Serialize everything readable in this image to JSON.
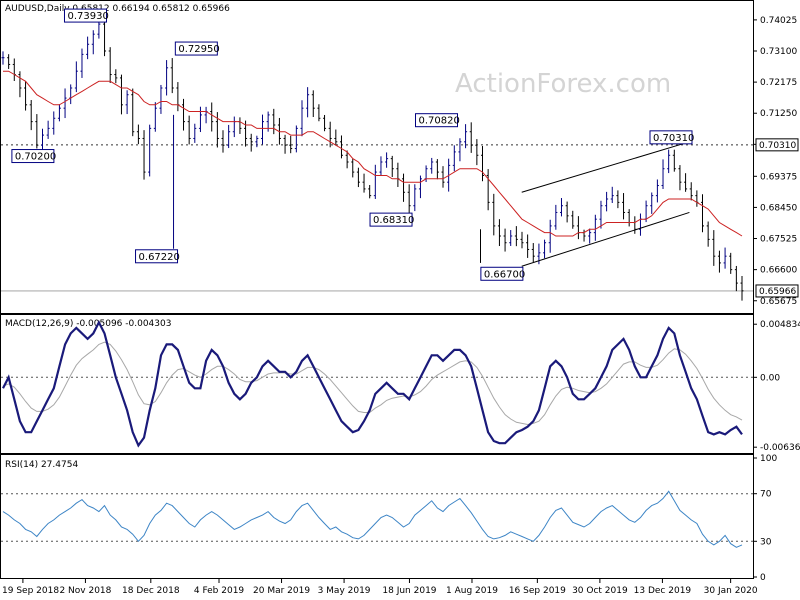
{
  "watermark": "ActionForex.com",
  "chart_data": [
    {
      "type": "ohlc",
      "title": "AUDUSD,Daily  0.65812 0.66194 0.65812 0.65966",
      "ylim": [
        0.654,
        0.742
      ],
      "yticks": [
        "0.74025",
        "0.73100",
        "0.72175",
        "0.71250",
        "0.70325",
        "0.69375",
        "0.68450",
        "0.67525",
        "0.66600",
        "0.65675"
      ],
      "ytick_values": [
        0.74025,
        0.731,
        0.72175,
        0.7125,
        0.70325,
        0.69375,
        0.6845,
        0.67525,
        0.666,
        0.65675
      ],
      "current_price_label": "0.65966",
      "current_price": 0.65966,
      "hline_label": "0.70310",
      "hline_value": 0.7031,
      "annotations": [
        {
          "text": "0.73930",
          "x": "2018-11-14",
          "value": 0.7393
        },
        {
          "text": "0.72950",
          "x": "2019-01-31",
          "value": 0.7295
        },
        {
          "text": "0.70200",
          "x": "2018-10-08",
          "value": 0.702
        },
        {
          "text": "0.67220",
          "x": "2019-01-03",
          "value": 0.6722
        },
        {
          "text": "0.70820",
          "x": "2019-07-19",
          "value": 0.7082
        },
        {
          "text": "0.68310",
          "x": "2019-06-17",
          "value": 0.6831
        },
        {
          "text": "0.66700",
          "x": "2019-09-03",
          "value": 0.667
        },
        {
          "text": "0.70310",
          "x": "2019-12-31",
          "value": 0.7031
        }
      ],
      "channel": {
        "upper": [
          [
            "2019-09-05",
            0.689
          ],
          [
            "2020-01-01",
            0.704
          ]
        ],
        "lower": [
          [
            "2019-09-05",
            0.667
          ],
          [
            "2020-01-01",
            0.683
          ]
        ]
      },
      "close": [
        0.729,
        0.727,
        0.724,
        0.72,
        0.715,
        0.71,
        0.703,
        0.706,
        0.708,
        0.711,
        0.714,
        0.717,
        0.72,
        0.725,
        0.73,
        0.733,
        0.736,
        0.739,
        0.731,
        0.724,
        0.723,
        0.715,
        0.718,
        0.707,
        0.705,
        0.695,
        0.708,
        0.714,
        0.72,
        0.726,
        0.72,
        0.715,
        0.71,
        0.705,
        0.708,
        0.712,
        0.713,
        0.71,
        0.705,
        0.703,
        0.707,
        0.71,
        0.708,
        0.705,
        0.704,
        0.705,
        0.71,
        0.712,
        0.709,
        0.705,
        0.703,
        0.702,
        0.708,
        0.714,
        0.718,
        0.714,
        0.711,
        0.708,
        0.705,
        0.704,
        0.7,
        0.698,
        0.695,
        0.692,
        0.69,
        0.688,
        0.695,
        0.698,
        0.699,
        0.696,
        0.693,
        0.689,
        0.685,
        0.69,
        0.693,
        0.696,
        0.698,
        0.695,
        0.692,
        0.697,
        0.701,
        0.704,
        0.707,
        0.703,
        0.7,
        0.694,
        0.686,
        0.679,
        0.676,
        0.674,
        0.676,
        0.675,
        0.674,
        0.672,
        0.67,
        0.671,
        0.674,
        0.679,
        0.683,
        0.685,
        0.682,
        0.679,
        0.677,
        0.676,
        0.677,
        0.681,
        0.685,
        0.687,
        0.688,
        0.686,
        0.683,
        0.68,
        0.678,
        0.681,
        0.685,
        0.688,
        0.691,
        0.696,
        0.7,
        0.696,
        0.692,
        0.69,
        0.688,
        0.686,
        0.679,
        0.675,
        0.67,
        0.668,
        0.67,
        0.666,
        0.662,
        0.6597
      ],
      "ma": [
        0.725,
        0.725,
        0.724,
        0.723,
        0.722,
        0.72,
        0.718,
        0.717,
        0.716,
        0.715,
        0.715,
        0.716,
        0.717,
        0.718,
        0.719,
        0.72,
        0.721,
        0.722,
        0.722,
        0.722,
        0.721,
        0.72,
        0.72,
        0.719,
        0.718,
        0.716,
        0.715,
        0.715,
        0.716,
        0.716,
        0.715,
        0.715,
        0.714,
        0.713,
        0.713,
        0.713,
        0.713,
        0.712,
        0.711,
        0.71,
        0.71,
        0.71,
        0.71,
        0.709,
        0.709,
        0.708,
        0.708,
        0.708,
        0.708,
        0.707,
        0.707,
        0.706,
        0.706,
        0.706,
        0.707,
        0.707,
        0.706,
        0.705,
        0.704,
        0.703,
        0.702,
        0.701,
        0.699,
        0.698,
        0.696,
        0.695,
        0.694,
        0.694,
        0.694,
        0.693,
        0.693,
        0.692,
        0.692,
        0.692,
        0.692,
        0.693,
        0.693,
        0.693,
        0.693,
        0.694,
        0.695,
        0.696,
        0.696,
        0.696,
        0.696,
        0.695,
        0.693,
        0.691,
        0.689,
        0.687,
        0.685,
        0.683,
        0.681,
        0.68,
        0.679,
        0.678,
        0.677,
        0.677,
        0.676,
        0.676,
        0.676,
        0.676,
        0.677,
        0.677,
        0.678,
        0.678,
        0.679,
        0.68,
        0.68,
        0.68,
        0.68,
        0.68,
        0.68,
        0.681,
        0.681,
        0.682,
        0.684,
        0.686,
        0.687,
        0.687,
        0.687,
        0.687,
        0.687,
        0.686,
        0.685,
        0.684,
        0.682,
        0.68,
        0.679,
        0.678,
        0.677,
        0.676
      ]
    },
    {
      "type": "line",
      "title": "MACD(12,26,9) -0.005096 -0.004303",
      "ylim": [
        -0.0068,
        0.0054
      ],
      "yticks": [
        "0.004834",
        "0.00",
        "-0.006362"
      ],
      "ytick_values": [
        0.004834,
        0.0,
        -0.006362
      ],
      "zero_line": 0.0,
      "series": [
        {
          "name": "MACD",
          "color": "#1a1a7a",
          "values": [
            -0.001,
            0.0,
            -0.002,
            -0.004,
            -0.005,
            -0.005,
            -0.004,
            -0.003,
            -0.002,
            -0.001,
            0.001,
            0.003,
            0.004,
            0.0045,
            0.004,
            0.0035,
            0.004,
            0.005,
            0.004,
            0.002,
            0.0,
            -0.0015,
            -0.003,
            -0.005,
            -0.0062,
            -0.0055,
            -0.003,
            -0.001,
            0.002,
            0.003,
            0.003,
            0.0025,
            0.001,
            -0.0005,
            -0.001,
            -0.001,
            0.0015,
            0.0025,
            0.002,
            0.001,
            -0.0005,
            -0.0015,
            -0.002,
            -0.0015,
            -0.0005,
            0.0,
            0.001,
            0.0015,
            0.001,
            0.0005,
            0.0005,
            0.0,
            0.0005,
            0.0015,
            0.002,
            0.001,
            0.0,
            -0.001,
            -0.002,
            -0.003,
            -0.004,
            -0.0045,
            -0.005,
            -0.0048,
            -0.004,
            -0.003,
            -0.0015,
            -0.001,
            -0.0005,
            -0.001,
            -0.0015,
            -0.0015,
            -0.002,
            -0.001,
            0.0,
            0.001,
            0.002,
            0.002,
            0.0015,
            0.002,
            0.0025,
            0.0025,
            0.002,
            0.001,
            -0.001,
            -0.003,
            -0.005,
            -0.0058,
            -0.006,
            -0.006,
            -0.0055,
            -0.005,
            -0.0048,
            -0.0045,
            -0.004,
            -0.003,
            -0.001,
            0.001,
            0.0015,
            0.001,
            0.0,
            -0.0015,
            -0.002,
            -0.002,
            -0.0015,
            -0.001,
            0.0,
            0.001,
            0.0025,
            0.003,
            0.0035,
            0.0025,
            0.001,
            0.0,
            0.0,
            0.001,
            0.002,
            0.0035,
            0.0045,
            0.004,
            0.002,
            0.0005,
            -0.001,
            -0.002,
            -0.0035,
            -0.005,
            -0.0052,
            -0.005,
            -0.0052,
            -0.0048,
            -0.0045,
            -0.0052
          ]
        },
        {
          "name": "Signal",
          "color": "#a8a8a8",
          "values": [
            -0.0008,
            -0.0006,
            -0.0009,
            -0.0015,
            -0.0022,
            -0.0028,
            -0.0031,
            -0.0031,
            -0.0029,
            -0.0025,
            -0.0018,
            -0.0008,
            0.0002,
            0.0011,
            0.0017,
            0.0021,
            0.0025,
            0.003,
            0.0032,
            0.003,
            0.0024,
            0.0016,
            0.0007,
            -0.0004,
            -0.0016,
            -0.0024,
            -0.0025,
            -0.0022,
            -0.0014,
            -0.0005,
            0.0002,
            0.0007,
            0.0008,
            0.0005,
            0.0002,
            0.0,
            0.0003,
            0.0007,
            0.001,
            0.001,
            0.0007,
            0.0003,
            -0.0002,
            -0.0004,
            -0.0004,
            -0.0003,
            0.0,
            0.0003,
            0.0004,
            0.0004,
            0.0004,
            0.0003,
            0.0003,
            0.0006,
            0.0009,
            0.0009,
            0.0007,
            0.0003,
            -0.0002,
            -0.0008,
            -0.0014,
            -0.002,
            -0.0026,
            -0.0031,
            -0.0032,
            -0.0032,
            -0.0028,
            -0.0025,
            -0.0021,
            -0.0019,
            -0.0018,
            -0.0017,
            -0.0018,
            -0.0016,
            -0.0013,
            -0.0008,
            -0.0002,
            0.0002,
            0.0005,
            0.0008,
            0.0011,
            0.0014,
            0.0015,
            0.0014,
            0.0009,
            0.0001,
            -0.0009,
            -0.0019,
            -0.0027,
            -0.0034,
            -0.0038,
            -0.0041,
            -0.0042,
            -0.0043,
            -0.0042,
            -0.004,
            -0.0034,
            -0.0025,
            -0.0017,
            -0.0011,
            -0.0009,
            -0.001,
            -0.0012,
            -0.0013,
            -0.0014,
            -0.0013,
            -0.001,
            -0.0006,
            0.0,
            0.0006,
            0.0012,
            0.0014,
            0.0014,
            0.0011,
            0.0009,
            0.0009,
            0.0011,
            0.0016,
            0.0022,
            0.0026,
            0.0025,
            0.0021,
            0.0015,
            0.0008,
            -0.0001,
            -0.0011,
            -0.0019,
            -0.0025,
            -0.003,
            -0.0034,
            -0.0036,
            -0.0039
          ]
        }
      ]
    },
    {
      "type": "line",
      "title": "RSI(14) 27.4754",
      "ylim": [
        0,
        100
      ],
      "yticks": [
        "100",
        "70",
        "30",
        "0"
      ],
      "ytick_values": [
        100,
        70,
        30,
        0
      ],
      "dashed_levels": [
        70,
        30
      ],
      "series": [
        {
          "name": "RSI",
          "color": "#3d85c6",
          "values": [
            55,
            52,
            48,
            45,
            40,
            38,
            34,
            40,
            45,
            48,
            52,
            55,
            58,
            62,
            65,
            60,
            58,
            55,
            60,
            52,
            48,
            42,
            40,
            36,
            30,
            35,
            45,
            52,
            56,
            62,
            60,
            55,
            50,
            45,
            42,
            48,
            52,
            55,
            52,
            48,
            44,
            40,
            42,
            45,
            48,
            50,
            52,
            55,
            50,
            47,
            45,
            48,
            55,
            60,
            62,
            56,
            50,
            45,
            40,
            42,
            38,
            36,
            33,
            32,
            35,
            40,
            45,
            50,
            52,
            50,
            46,
            42,
            45,
            52,
            56,
            60,
            64,
            58,
            55,
            60,
            63,
            66,
            60,
            54,
            47,
            40,
            34,
            32,
            33,
            35,
            38,
            36,
            34,
            32,
            30,
            35,
            42,
            50,
            56,
            58,
            52,
            46,
            44,
            42,
            45,
            50,
            55,
            58,
            60,
            56,
            52,
            48,
            46,
            50,
            56,
            60,
            62,
            66,
            72,
            64,
            56,
            52,
            48,
            45,
            36,
            30,
            27,
            30,
            35,
            28,
            25,
            27
          ]
        }
      ]
    }
  ],
  "xticks": [
    "19 Sep 2018",
    "2 Nov 2018",
    "18 Dec 2018",
    "4 Feb 2019",
    "20 Mar 2019",
    "3 May 2019",
    "18 Jun 2019",
    "1 Aug 2019",
    "16 Sep 2019",
    "30 Oct 2019",
    "13 Dec 2019",
    "30 Jan 2020"
  ]
}
